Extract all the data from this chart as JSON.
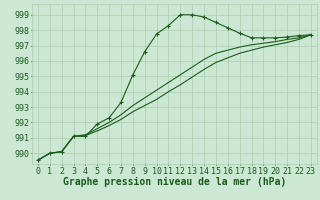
{
  "background_color": "#cce8d4",
  "grid_color": "#aacfaa",
  "line_color": "#1a5c1a",
  "marker_color": "#1a5c1a",
  "xlabel": "Graphe pression niveau de la mer (hPa)",
  "xlabel_fontsize": 7,
  "tick_fontsize": 6,
  "xlim": [
    -0.5,
    23.5
  ],
  "ylim": [
    989.3,
    999.7
  ],
  "yticks": [
    990,
    991,
    992,
    993,
    994,
    995,
    996,
    997,
    998,
    999
  ],
  "xticks": [
    0,
    1,
    2,
    3,
    4,
    5,
    6,
    7,
    8,
    9,
    10,
    11,
    12,
    13,
    14,
    15,
    16,
    17,
    18,
    19,
    20,
    21,
    22,
    23
  ],
  "series1_x": [
    0,
    1,
    2,
    3,
    4,
    5,
    6,
    7,
    8,
    9,
    10,
    11,
    12,
    13,
    14,
    15,
    16,
    17,
    18,
    19,
    20,
    21,
    22,
    23
  ],
  "series1_y": [
    989.55,
    990.0,
    990.1,
    991.1,
    991.1,
    991.9,
    992.3,
    993.3,
    995.1,
    996.6,
    997.75,
    998.3,
    999.0,
    999.0,
    998.85,
    998.5,
    998.15,
    997.8,
    997.5,
    997.5,
    997.5,
    997.55,
    997.65,
    997.7
  ],
  "series2_x": [
    0,
    1,
    2,
    3,
    4,
    5,
    6,
    7,
    8,
    9,
    10,
    11,
    12,
    13,
    14,
    15,
    16,
    17,
    18,
    19,
    20,
    21,
    22,
    23
  ],
  "series2_y": [
    989.55,
    990.0,
    990.1,
    991.1,
    991.2,
    991.6,
    992.0,
    992.5,
    993.1,
    993.6,
    994.1,
    994.6,
    995.1,
    995.6,
    996.1,
    996.5,
    996.7,
    996.9,
    997.05,
    997.15,
    997.25,
    997.4,
    997.5,
    997.7
  ],
  "series3_x": [
    0,
    1,
    2,
    3,
    4,
    5,
    6,
    7,
    8,
    9,
    10,
    11,
    12,
    13,
    14,
    15,
    16,
    17,
    18,
    19,
    20,
    21,
    22,
    23
  ],
  "series3_y": [
    989.55,
    990.0,
    990.1,
    991.1,
    991.15,
    991.45,
    991.8,
    992.2,
    992.7,
    993.1,
    993.5,
    994.0,
    994.45,
    994.95,
    995.45,
    995.9,
    996.2,
    996.5,
    996.7,
    996.9,
    997.05,
    997.2,
    997.4,
    997.7
  ]
}
